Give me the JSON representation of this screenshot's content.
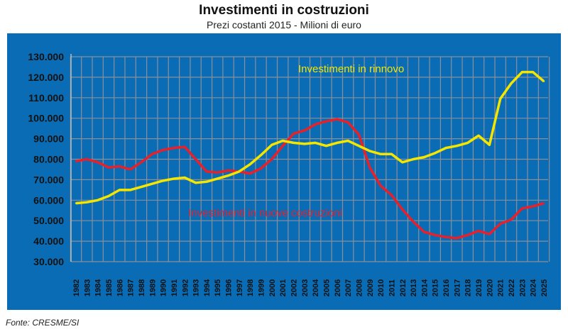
{
  "chart_data": {
    "type": "line",
    "title": "Investimenti in costruzioni",
    "subtitle": "Prezi costanti 2015 - Milioni di euro",
    "source": "Fonte: CRESME/SI",
    "xlabel": "",
    "ylabel": "",
    "ylim": [
      30000,
      130000
    ],
    "yticks": [
      "30.000",
      "40.000",
      "50.000",
      "60.000",
      "70.000",
      "80.000",
      "90.000",
      "100.000",
      "110.000",
      "120.000",
      "130.000"
    ],
    "x": [
      "1982",
      "1983",
      "1984",
      "1985",
      "1986",
      "1987",
      "1988",
      "1989",
      "1990",
      "1991",
      "1992",
      "1993",
      "1994",
      "1995",
      "1996",
      "1997",
      "1998",
      "1999",
      "2000",
      "2001",
      "2002",
      "2003",
      "2004",
      "2005",
      "2006",
      "2007",
      "2008",
      "2009",
      "2010",
      "2011",
      "2012",
      "2013",
      "2014",
      "2015",
      "2016",
      "2017",
      "2018",
      "2019",
      "2020",
      "2021",
      "2022",
      "2023",
      "2024",
      "2025"
    ],
    "grid": true,
    "series": [
      {
        "name": "Investimenti in nuove costruzioni",
        "color": "#e8202a",
        "values": [
          79000,
          80000,
          78500,
          76000,
          76500,
          75000,
          78500,
          82500,
          84500,
          85500,
          86000,
          80000,
          74000,
          73500,
          74500,
          74000,
          73000,
          75500,
          80000,
          86500,
          92500,
          94000,
          97000,
          98500,
          99500,
          98000,
          92000,
          76000,
          67000,
          62500,
          55500,
          49500,
          44500,
          43000,
          42000,
          41500,
          43000,
          45000,
          43500,
          48500,
          50500,
          56000,
          57000,
          58500
        ]
      },
      {
        "name": "Investimenti in rinnovo",
        "color": "#f5e600",
        "values": [
          58500,
          59000,
          60000,
          62000,
          65000,
          65000,
          66500,
          68000,
          69500,
          70500,
          71000,
          68500,
          69000,
          70500,
          72000,
          74000,
          77500,
          82000,
          87000,
          89000,
          88000,
          87500,
          88000,
          86500,
          88000,
          89000,
          86500,
          84000,
          82500,
          82500,
          78500,
          80000,
          81000,
          83000,
          85500,
          86500,
          88000,
          91500,
          87000,
          109500,
          117000,
          122500,
          122500,
          118000
        ]
      }
    ]
  }
}
